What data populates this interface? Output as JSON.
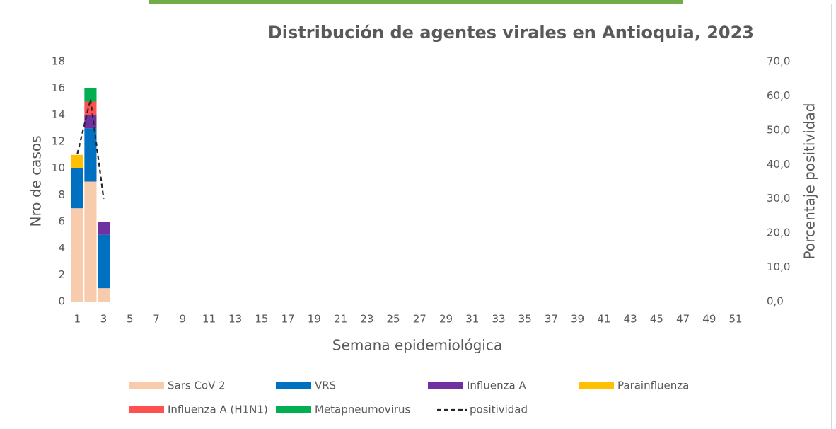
{
  "chart_data": {
    "type": "bar",
    "stacked": true,
    "title": "Distribución de agentes virales en Antioquia, 2023",
    "x_label": "Semana epidemiológica",
    "y_label": "Nro de casos",
    "y2_label": "Porcentaje positividad",
    "categories": [
      1,
      null,
      3,
      null,
      5,
      null,
      7,
      null,
      9,
      null,
      11,
      null,
      13,
      null,
      15,
      null,
      17,
      null,
      19,
      null,
      21,
      null,
      23,
      null,
      25,
      null,
      27,
      null,
      29,
      null,
      31,
      null,
      33,
      null,
      35,
      null,
      37,
      null,
      39,
      null,
      41,
      null,
      43,
      null,
      45,
      null,
      47,
      null,
      49,
      null,
      51,
      null
    ],
    "series": [
      {
        "name": "Sars CoV 2",
        "color": "#f8cbad",
        "values": [
          7,
          9,
          1,
          null,
          null,
          null,
          null,
          null,
          null,
          null,
          null,
          null,
          null,
          null,
          null,
          null,
          null,
          null,
          null,
          null,
          null,
          null,
          null,
          null,
          null,
          null,
          null,
          null,
          null,
          null,
          null,
          null,
          null,
          null,
          null,
          null,
          null,
          null,
          null,
          null,
          null,
          null,
          null,
          null,
          null,
          null,
          null,
          null,
          null,
          null,
          null,
          null
        ]
      },
      {
        "name": "VRS",
        "color": "#0070c0",
        "values": [
          3,
          4,
          4,
          null,
          null,
          null,
          null,
          null,
          null,
          null,
          null,
          null,
          null,
          null,
          null,
          null,
          null,
          null,
          null,
          null,
          null,
          null,
          null,
          null,
          null,
          null,
          null,
          null,
          null,
          null,
          null,
          null,
          null,
          null,
          null,
          null,
          null,
          null,
          null,
          null,
          null,
          null,
          null,
          null,
          null,
          null,
          null,
          null,
          null,
          null,
          null,
          null
        ]
      },
      {
        "name": "Influenza A",
        "color": "#7030a0",
        "values": [
          null,
          1,
          1,
          null,
          null,
          null,
          null,
          null,
          null,
          null,
          null,
          null,
          null,
          null,
          null,
          null,
          null,
          null,
          null,
          null,
          null,
          null,
          null,
          null,
          null,
          null,
          null,
          null,
          null,
          null,
          null,
          null,
          null,
          null,
          null,
          null,
          null,
          null,
          null,
          null,
          null,
          null,
          null,
          null,
          null,
          null,
          null,
          null,
          null,
          null,
          null,
          null
        ]
      },
      {
        "name": "Parainfluenza",
        "color": "#ffc000",
        "values": [
          1,
          null,
          null,
          null,
          null,
          null,
          null,
          null,
          null,
          null,
          null,
          null,
          null,
          null,
          null,
          null,
          null,
          null,
          null,
          null,
          null,
          null,
          null,
          null,
          null,
          null,
          null,
          null,
          null,
          null,
          null,
          null,
          null,
          null,
          null,
          null,
          null,
          null,
          null,
          null,
          null,
          null,
          null,
          null,
          null,
          null,
          null,
          null,
          null,
          null,
          null,
          null
        ]
      },
      {
        "name": "Influenza A (H1N1)",
        "color": "#ff5050",
        "values": [
          null,
          1,
          null,
          null,
          null,
          null,
          null,
          null,
          null,
          null,
          null,
          null,
          null,
          null,
          null,
          null,
          null,
          null,
          null,
          null,
          null,
          null,
          null,
          null,
          null,
          null,
          null,
          null,
          null,
          null,
          null,
          null,
          null,
          null,
          null,
          null,
          null,
          null,
          null,
          null,
          null,
          null,
          null,
          null,
          null,
          null,
          null,
          null,
          null,
          null,
          null,
          null
        ]
      },
      {
        "name": "Metapneumovirus",
        "color": "#00b050",
        "values": [
          null,
          1,
          null,
          null,
          null,
          null,
          null,
          null,
          null,
          null,
          null,
          null,
          null,
          null,
          null,
          null,
          null,
          null,
          null,
          null,
          null,
          null,
          null,
          null,
          null,
          null,
          null,
          null,
          null,
          null,
          null,
          null,
          null,
          null,
          null,
          null,
          null,
          null,
          null,
          null,
          null,
          null,
          null,
          null,
          null,
          null,
          null,
          null,
          null,
          null,
          null,
          null
        ]
      },
      {
        "name": "positividad",
        "color": "#262626",
        "type": "line",
        "dashed": true,
        "axis": "y2",
        "values": [
          43,
          59,
          30,
          null,
          null,
          null,
          null,
          null,
          null,
          null,
          null,
          null,
          null,
          null,
          null,
          null,
          null,
          null,
          null,
          null,
          null,
          null,
          null,
          null,
          null,
          null,
          null,
          null,
          null,
          null,
          null,
          null,
          null,
          null,
          null,
          null,
          null,
          null,
          null,
          null,
          null,
          null,
          null,
          null,
          null,
          null,
          null,
          null,
          null,
          null,
          null,
          null
        ]
      }
    ],
    "ylim": [
      0,
      18
    ],
    "yticks": [
      0,
      2,
      4,
      6,
      8,
      10,
      12,
      14,
      16,
      18
    ],
    "y2lim": [
      0,
      70
    ],
    "y2ticks": [
      {
        "value": 0,
        "label": "0,0"
      },
      {
        "value": 10,
        "label": "10,0"
      },
      {
        "value": 20,
        "label": "20,0"
      },
      {
        "value": 30,
        "label": "30,0"
      },
      {
        "value": 40,
        "label": "40,0"
      },
      {
        "value": 50,
        "label": "50,0"
      },
      {
        "value": 60,
        "label": "60,0"
      },
      {
        "value": 70,
        "label": "70,0"
      }
    ],
    "grid": false,
    "legend": "bottom"
  }
}
